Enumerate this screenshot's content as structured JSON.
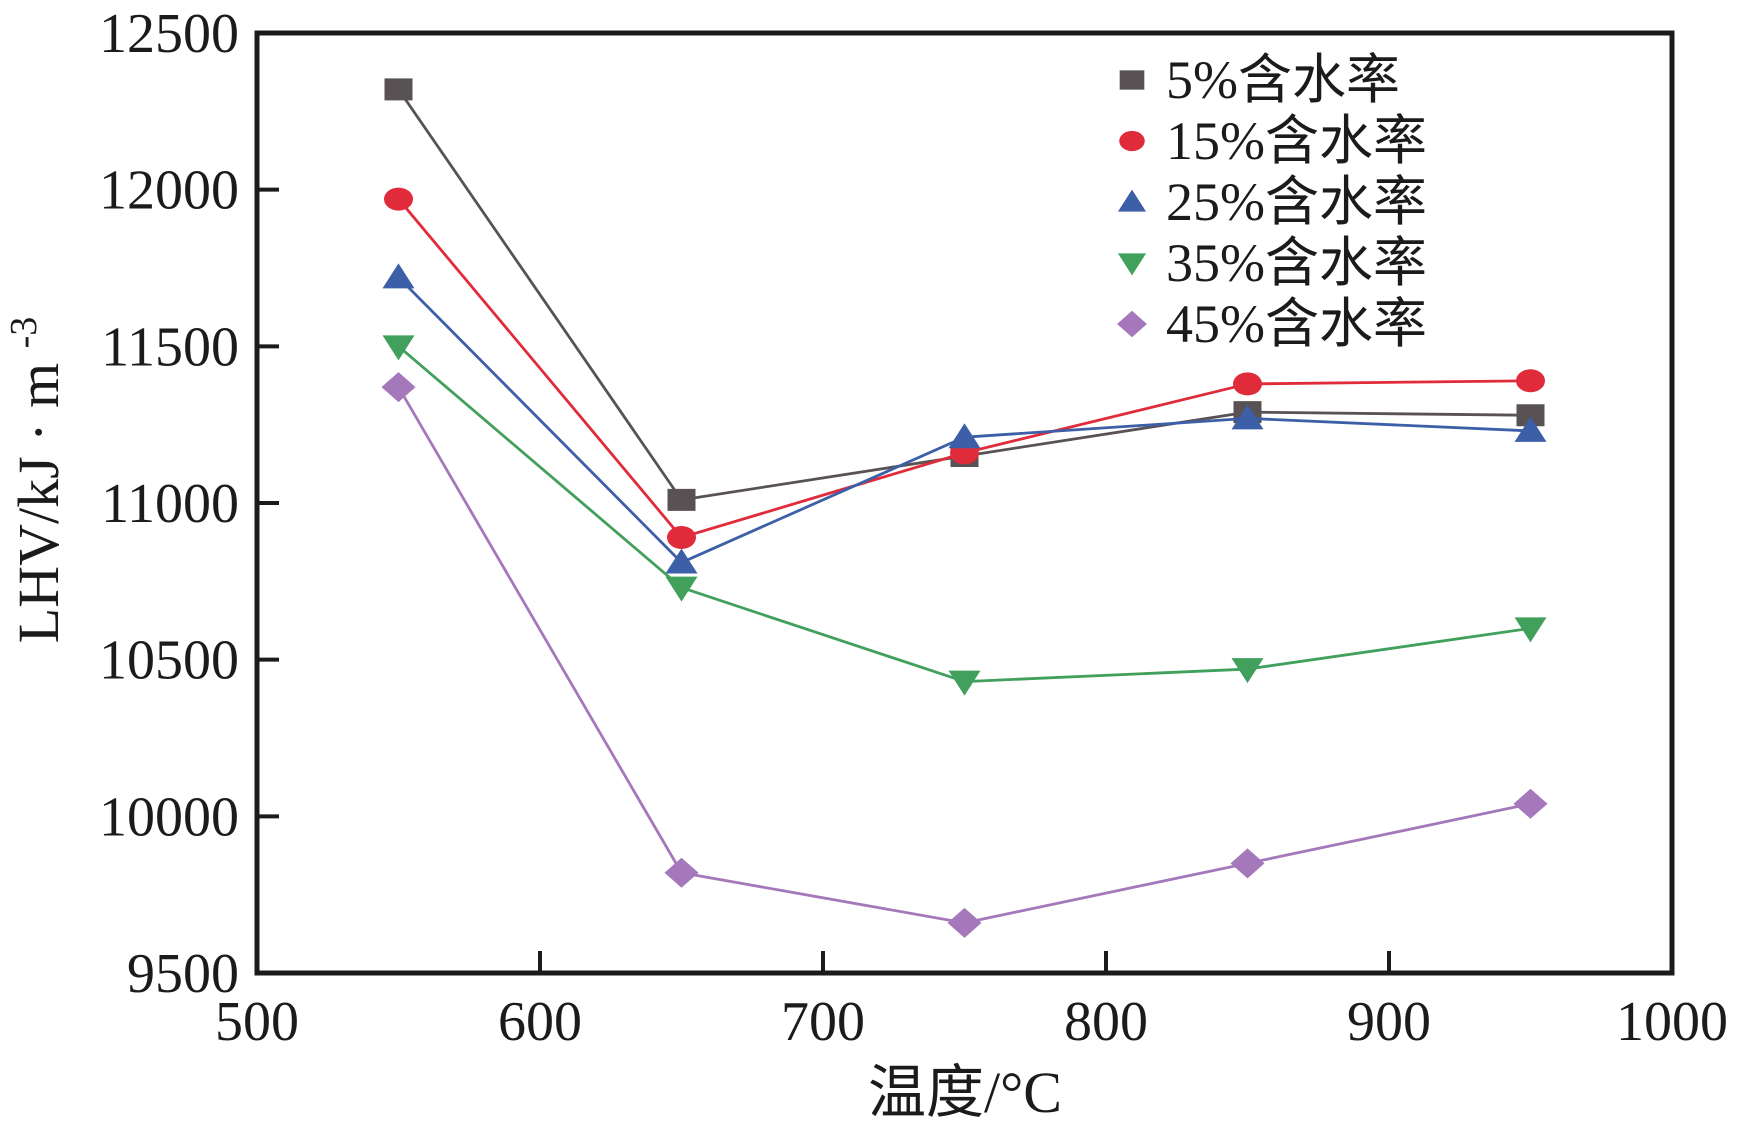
{
  "figure": {
    "background": "#ffffff",
    "frame_color": "#1c1a1a",
    "text_color": "#1c1a1a"
  },
  "chart_data": {
    "type": "line",
    "title": "",
    "xlabel": "温度/°C",
    "ylabel": "LHV/kJ·m⁻³",
    "ylabel_base": "LHV/kJ · m",
    "ylabel_sup": "-3",
    "x": [
      550,
      650,
      750,
      850,
      950
    ],
    "xlim": [
      500,
      1000
    ],
    "ylim": [
      9500,
      12500
    ],
    "x_ticks": [
      500,
      600,
      700,
      800,
      900,
      1000
    ],
    "y_ticks": [
      9500,
      10000,
      10500,
      11000,
      11500,
      12000,
      12500
    ],
    "grid": false,
    "legend_position": "top-right",
    "series": [
      {
        "name": "5%含水率",
        "marker": "square",
        "color": "#595254",
        "values": [
          12320,
          11010,
          11150,
          11290,
          11280
        ]
      },
      {
        "name": "15%含水率",
        "marker": "circle",
        "color": "#e02b3a",
        "values": [
          11970,
          10890,
          11160,
          11380,
          11390
        ]
      },
      {
        "name": "25%含水率",
        "marker": "triangle-up",
        "color": "#3d5fa7",
        "values": [
          11720,
          10810,
          11210,
          11270,
          11230
        ]
      },
      {
        "name": "35%含水率",
        "marker": "triangle-down",
        "color": "#41a05b",
        "values": [
          11500,
          10730,
          10430,
          10470,
          10600
        ]
      },
      {
        "name": "45%含水率",
        "marker": "diamond",
        "color": "#a478bb",
        "values": [
          11370,
          9820,
          9660,
          9850,
          10040
        ]
      }
    ]
  }
}
